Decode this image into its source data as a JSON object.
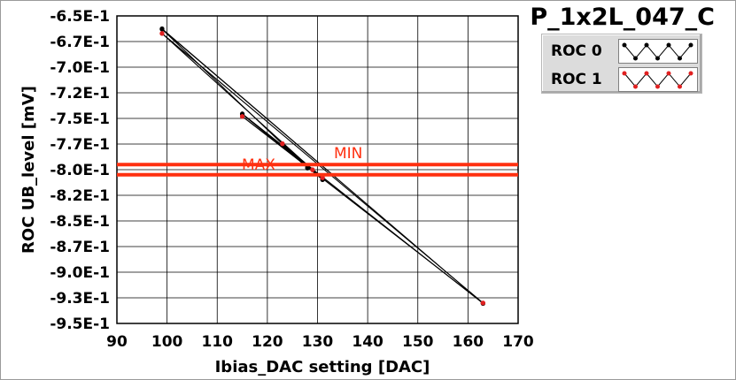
{
  "chart_data": {
    "type": "line",
    "title": "P_1x2L_047_C",
    "xlabel": "Ibias_DAC setting [DAC]",
    "ylabel": "ROC UB_level [mV]",
    "xlim": [
      90,
      170
    ],
    "ylim": [
      -0.95,
      -0.65
    ],
    "x_ticks": [
      "90",
      "100",
      "110",
      "120",
      "130",
      "140",
      "150",
      "160",
      "170"
    ],
    "y_ticks": [
      "-6.5E-1",
      "-6.7E-1",
      "-7.0E-1",
      "-7.2E-1",
      "-7.5E-1",
      "-7.7E-1",
      "-8.0E-1",
      "-8.2E-1",
      "-8.5E-1",
      "-8.7E-1",
      "-9.0E-1",
      "-9.3E-1",
      "-9.5E-1"
    ],
    "grid": true,
    "legend_position": "top-right",
    "series": [
      {
        "name": "ROC 0",
        "color": "#000000",
        "x": [
          99,
          163,
          115,
          131,
          123,
          128,
          99,
          163,
          115,
          131,
          123,
          128,
          99
        ],
        "y": [
          -0.6625,
          -0.9305,
          -0.7455,
          -0.8098,
          -0.7758,
          -0.7982,
          -0.663,
          -0.9305,
          -0.746,
          -0.8095,
          -0.776,
          -0.7985,
          -0.6628
        ]
      },
      {
        "name": "ROC 1",
        "color": "#e02020",
        "x": [
          99,
          163,
          115,
          131,
          123,
          129,
          99,
          163,
          115,
          131,
          123,
          129,
          99
        ],
        "y": [
          -0.6672,
          -0.93,
          -0.7482,
          -0.8078,
          -0.7745,
          -0.8002,
          -0.667,
          -0.93,
          -0.748,
          -0.808,
          -0.7748,
          -0.8,
          -0.6672
        ]
      }
    ],
    "reference_lines": [
      {
        "label": "MIN",
        "y": -0.795,
        "color": "#ff3010"
      },
      {
        "label": "MAX",
        "y": -0.805,
        "color": "#ff3010"
      }
    ]
  }
}
